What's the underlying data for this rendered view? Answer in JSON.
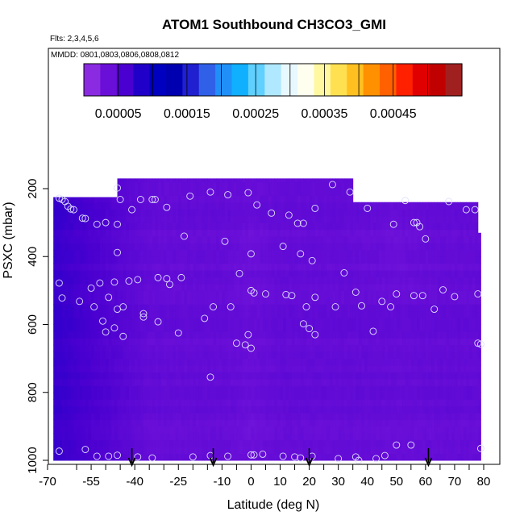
{
  "chart_data": {
    "type": "heatmap",
    "title": "ATOM1 Southbound CH3CO3_GMI",
    "flights_note": "Flts: 2,3,4,5,6",
    "dates_note": "MMDD: 0801,0803,0806,0808,0812",
    "xlabel": "Latitude (deg N)",
    "ylabel": "PSXC (mbar)",
    "xlim": [
      -70,
      82
    ],
    "ylim": [
      1000,
      100
    ],
    "x_ticks": [
      -70,
      -55,
      -40,
      -25,
      -10,
      0,
      10,
      20,
      30,
      40,
      50,
      60,
      70,
      80
    ],
    "x_tick_labels": [
      "-70",
      "-55",
      "-40",
      "-25",
      "-10",
      "0",
      "10",
      "20",
      "30",
      "40",
      "50",
      "60",
      "70",
      "80"
    ],
    "x_minor_ticks": [
      -60,
      -50,
      -45,
      -35,
      -30,
      -20,
      -15,
      -5,
      5,
      15,
      25,
      35,
      45,
      55,
      65,
      75
    ],
    "y_ticks": [
      200,
      400,
      600,
      800,
      1000
    ],
    "y_tick_labels": [
      "200",
      "400",
      "600",
      "800",
      "1000"
    ],
    "colorbar": {
      "min": 0,
      "max": 0.00055,
      "tick_values": [
        5e-05,
        0.00015,
        0.00025,
        0.00035,
        0.00045
      ],
      "tick_labels": [
        "0.00005",
        "0.00015",
        "0.00025",
        "0.00035",
        "0.00045"
      ],
      "colors": [
        "#8a2be2",
        "#6a0fd8",
        "#4a00d0",
        "#2000c8",
        "#0000c0",
        "#0000b0",
        "#2020d0",
        "#3060e8",
        "#2090f8",
        "#10b0ff",
        "#60d0ff",
        "#b0e8ff",
        "#e8f8ff",
        "#fffff0",
        "#fff8a0",
        "#ffe050",
        "#ffc020",
        "#ff9000",
        "#ff6000",
        "#ff2000",
        "#e00000",
        "#c00000",
        "#a02020"
      ]
    },
    "field_value_range": [
      1e-05,
      9e-05
    ],
    "data_extent": {
      "lat_min": -68,
      "lat_max": 79,
      "top_pressure_by_lat": [
        [
          -68,
          225
        ],
        [
          -46,
          170
        ],
        [
          34,
          170
        ],
        [
          35,
          240
        ],
        [
          77,
          240
        ],
        [
          78,
          330
        ],
        [
          79,
          400
        ]
      ]
    },
    "observations": [
      [
        -66,
        228
      ],
      [
        -65,
        232
      ],
      [
        -64,
        238
      ],
      [
        -63,
        252
      ],
      [
        -62,
        260
      ],
      [
        -61,
        262
      ],
      [
        -58,
        287
      ],
      [
        -57,
        288
      ],
      [
        -53,
        305
      ],
      [
        -50,
        300
      ],
      [
        -46,
        198
      ],
      [
        -46,
        305
      ],
      [
        -45,
        232
      ],
      [
        -41,
        262
      ],
      [
        -38,
        232
      ],
      [
        -34,
        232
      ],
      [
        -33,
        232
      ],
      [
        -29,
        255
      ],
      [
        -23,
        340
      ],
      [
        -21,
        222
      ],
      [
        -14,
        210
      ],
      [
        -8,
        218
      ],
      [
        -1,
        212
      ],
      [
        2,
        248
      ],
      [
        7,
        272
      ],
      [
        13,
        278
      ],
      [
        16,
        302
      ],
      [
        18,
        302
      ],
      [
        22,
        258
      ],
      [
        28,
        188
      ],
      [
        34,
        210
      ],
      [
        40,
        258
      ],
      [
        49,
        305
      ],
      [
        53,
        235
      ],
      [
        56,
        300
      ],
      [
        57,
        300
      ],
      [
        58,
        312
      ],
      [
        60,
        348
      ],
      [
        68,
        238
      ],
      [
        74,
        262
      ],
      [
        77,
        262
      ],
      [
        -46,
        388
      ],
      [
        -32,
        462
      ],
      [
        -29,
        465
      ],
      [
        -24,
        462
      ],
      [
        -16,
        582
      ],
      [
        -13,
        548
      ],
      [
        -9,
        355
      ],
      [
        0,
        392
      ],
      [
        -4,
        450
      ],
      [
        11,
        370
      ],
      [
        17,
        392
      ],
      [
        21,
        412
      ],
      [
        32,
        448
      ],
      [
        38,
        545
      ],
      [
        45,
        532
      ],
      [
        50,
        510
      ],
      [
        56,
        515
      ],
      [
        59,
        515
      ],
      [
        66,
        498
      ],
      [
        70,
        518
      ],
      [
        78,
        510
      ],
      [
        -52,
        478
      ],
      [
        -47,
        475
      ],
      [
        -42,
        472
      ],
      [
        -66,
        478
      ],
      [
        -65,
        522
      ],
      [
        -55,
        493
      ],
      [
        -49,
        520
      ],
      [
        -46,
        555
      ],
      [
        -44,
        548
      ],
      [
        -39,
        468
      ],
      [
        -37,
        568
      ],
      [
        -59,
        532
      ],
      [
        -54,
        548
      ],
      [
        -51,
        590
      ],
      [
        -50,
        622
      ],
      [
        -47,
        610
      ],
      [
        -44,
        635
      ],
      [
        -28,
        482
      ],
      [
        -25,
        625
      ],
      [
        -7,
        548
      ],
      [
        -5,
        655
      ],
      [
        0,
        500
      ],
      [
        1,
        507
      ],
      [
        5,
        510
      ],
      [
        12,
        512
      ],
      [
        14,
        515
      ],
      [
        18,
        598
      ],
      [
        19,
        548
      ],
      [
        22,
        520
      ],
      [
        -37,
        578
      ],
      [
        -32,
        592
      ],
      [
        20,
        612
      ],
      [
        22,
        630
      ],
      [
        29,
        548
      ],
      [
        36,
        505
      ],
      [
        42,
        620
      ],
      [
        48,
        548
      ],
      [
        63,
        555
      ],
      [
        78,
        655
      ],
      [
        79,
        658
      ],
      [
        -14,
        755
      ],
      [
        -2,
        660
      ],
      [
        0,
        670
      ],
      [
        -1,
        630
      ],
      [
        -66,
        973
      ],
      [
        -57,
        968
      ],
      [
        -53,
        988
      ],
      [
        -49,
        988
      ],
      [
        -46,
        985
      ],
      [
        -39,
        990
      ],
      [
        -34,
        993
      ],
      [
        -20,
        990
      ],
      [
        -14,
        986
      ],
      [
        -8,
        988
      ],
      [
        0,
        984
      ],
      [
        1,
        984
      ],
      [
        4,
        982
      ],
      [
        11,
        988
      ],
      [
        15,
        990
      ],
      [
        17,
        993
      ],
      [
        21,
        988
      ],
      [
        30,
        995
      ],
      [
        36,
        990
      ],
      [
        43,
        995
      ],
      [
        46,
        986
      ],
      [
        50,
        955
      ],
      [
        55,
        955
      ],
      [
        79,
        965
      ],
      [
        37,
        1000
      ]
    ],
    "arrow_latitudes": [
      -41,
      -13,
      20,
      61
    ]
  }
}
